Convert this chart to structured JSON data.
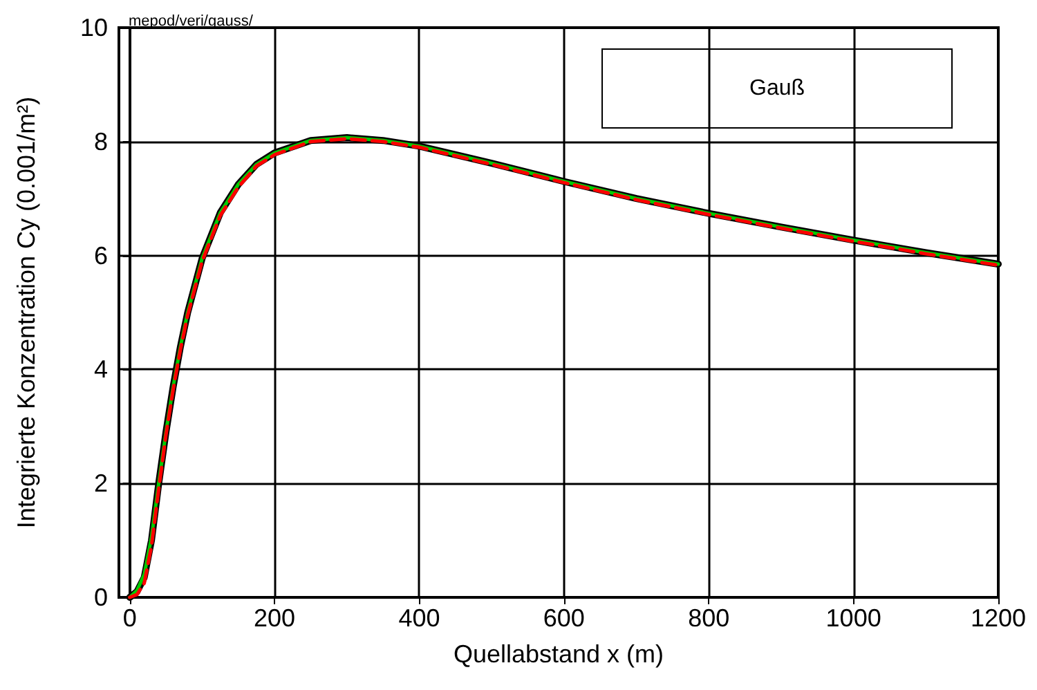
{
  "chart_data": {
    "type": "line",
    "xlabel": "Quellabstand x (m)",
    "ylabel": "Integrierte Konzentration Cy (0.001/m²)",
    "annotations": [
      "mepod/veri/gauss/",
      "Gauß"
    ],
    "x": [
      0,
      10,
      20,
      30,
      40,
      50,
      60,
      70,
      80,
      100,
      125,
      150,
      175,
      200,
      250,
      300,
      350,
      400,
      500,
      600,
      700,
      800,
      900,
      1000,
      1100,
      1200
    ],
    "series": [
      {
        "color": "#000000",
        "line_style": "solid",
        "values": [
          0,
          0.1,
          0.35,
          1.0,
          2.0,
          2.9,
          3.7,
          4.4,
          5.0,
          5.95,
          6.75,
          7.25,
          7.6,
          7.8,
          8.02,
          8.07,
          8.02,
          7.92,
          7.62,
          7.3,
          7.0,
          6.74,
          6.5,
          6.27,
          6.05,
          5.85
        ]
      },
      {
        "color": "#00cc00",
        "line_style": "solid",
        "values": [
          0,
          0.12,
          0.4,
          1.05,
          2.0,
          2.9,
          3.7,
          4.4,
          5.0,
          5.95,
          6.75,
          7.25,
          7.6,
          7.8,
          8.02,
          8.07,
          8.02,
          7.92,
          7.62,
          7.3,
          7.0,
          6.74,
          6.5,
          6.27,
          6.05,
          5.85
        ]
      },
      {
        "color": "#ff0000",
        "line_style": "dashed",
        "values": [
          0,
          0.05,
          0.25,
          0.9,
          1.9,
          2.85,
          3.65,
          4.35,
          4.95,
          5.9,
          6.7,
          7.2,
          7.57,
          7.77,
          8.0,
          8.05,
          8.0,
          7.9,
          7.6,
          7.28,
          6.98,
          6.72,
          6.48,
          6.25,
          6.03,
          5.83
        ]
      }
    ],
    "xlim": [
      -15,
      1200
    ],
    "xticks": [
      0,
      200,
      400,
      600,
      800,
      1000,
      1200
    ],
    "ylim": [
      0,
      10
    ],
    "yticks": [
      0,
      2,
      4,
      6,
      8,
      10
    ],
    "grid": true,
    "marker": "none"
  }
}
